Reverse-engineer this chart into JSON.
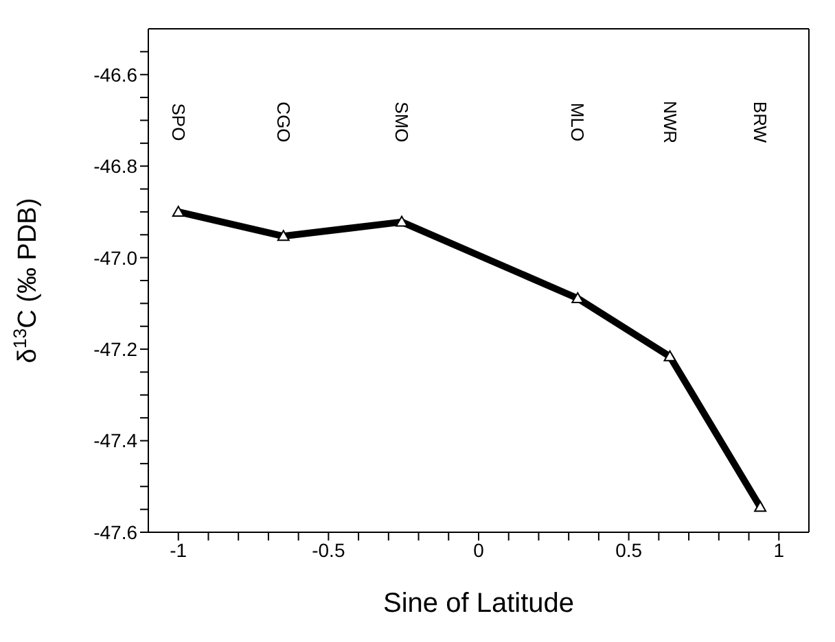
{
  "chart_data": {
    "type": "line",
    "xlabel": "Sine of Latitude",
    "ylabel": "δ$^{13}$C  (‰ PDB)",
    "x": [
      -1.0,
      -0.65,
      -0.256,
      0.33,
      0.637,
      0.938
    ],
    "series": [
      {
        "color": "#000000",
        "values": [
          -46.9,
          -46.953,
          -46.922,
          -47.089,
          -47.216,
          -47.545
        ]
      }
    ],
    "xlim": [
      -1.1,
      1.1
    ],
    "xticks": [
      -1,
      {
        "value": -0.9,
        "label": null
      },
      {
        "value": -0.8,
        "label": null
      },
      {
        "value": -0.7,
        "label": null
      },
      {
        "value": -0.6,
        "label": null
      },
      -0.5,
      {
        "value": -0.4,
        "label": null
      },
      {
        "value": -0.3,
        "label": null
      },
      {
        "value": -0.2,
        "label": null
      },
      {
        "value": -0.1,
        "label": null
      },
      0,
      {
        "value": 0.1,
        "label": null
      },
      {
        "value": 0.2,
        "label": null
      },
      {
        "value": 0.3,
        "label": null
      },
      {
        "value": 0.4,
        "label": null
      },
      0.5,
      {
        "value": 0.6,
        "label": null
      },
      {
        "value": 0.7,
        "label": null
      },
      {
        "value": 0.8,
        "label": null
      },
      {
        "value": 0.9,
        "label": null
      },
      1
    ],
    "ylim": [
      -47.6,
      -46.5
    ],
    "yticks": [
      {
        "value": -47.6,
        "label": "-47.6"
      },
      {
        "value": -47.55,
        "label": null
      },
      {
        "value": -47.5,
        "label": null
      },
      {
        "value": -47.45,
        "label": null
      },
      {
        "value": -47.4,
        "label": "-47.4"
      },
      {
        "value": -47.35,
        "label": null
      },
      {
        "value": -47.3,
        "label": null
      },
      {
        "value": -47.25,
        "label": null
      },
      {
        "value": -47.2,
        "label": "-47.2"
      },
      {
        "value": -47.15,
        "label": null
      },
      {
        "value": -47.1,
        "label": null
      },
      {
        "value": -47.05,
        "label": null
      },
      {
        "value": -47.0,
        "label": "-47.0"
      },
      {
        "value": -46.95,
        "label": null
      },
      {
        "value": -46.9,
        "label": null
      },
      {
        "value": -46.85,
        "label": null
      },
      {
        "value": -46.8,
        "label": "-46.8"
      },
      {
        "value": -46.75,
        "label": null
      },
      {
        "value": -46.7,
        "label": null
      },
      {
        "value": -46.65,
        "label": null
      },
      {
        "value": -46.6,
        "label": "-46.6"
      },
      {
        "value": -46.55,
        "label": null
      }
    ],
    "annotations": [
      "SPO",
      "CGO",
      "SMO",
      "MLO",
      "NWR",
      "BRW"
    ],
    "marker": "triangle",
    "line_style": "solid",
    "grid": false,
    "legend": false
  }
}
